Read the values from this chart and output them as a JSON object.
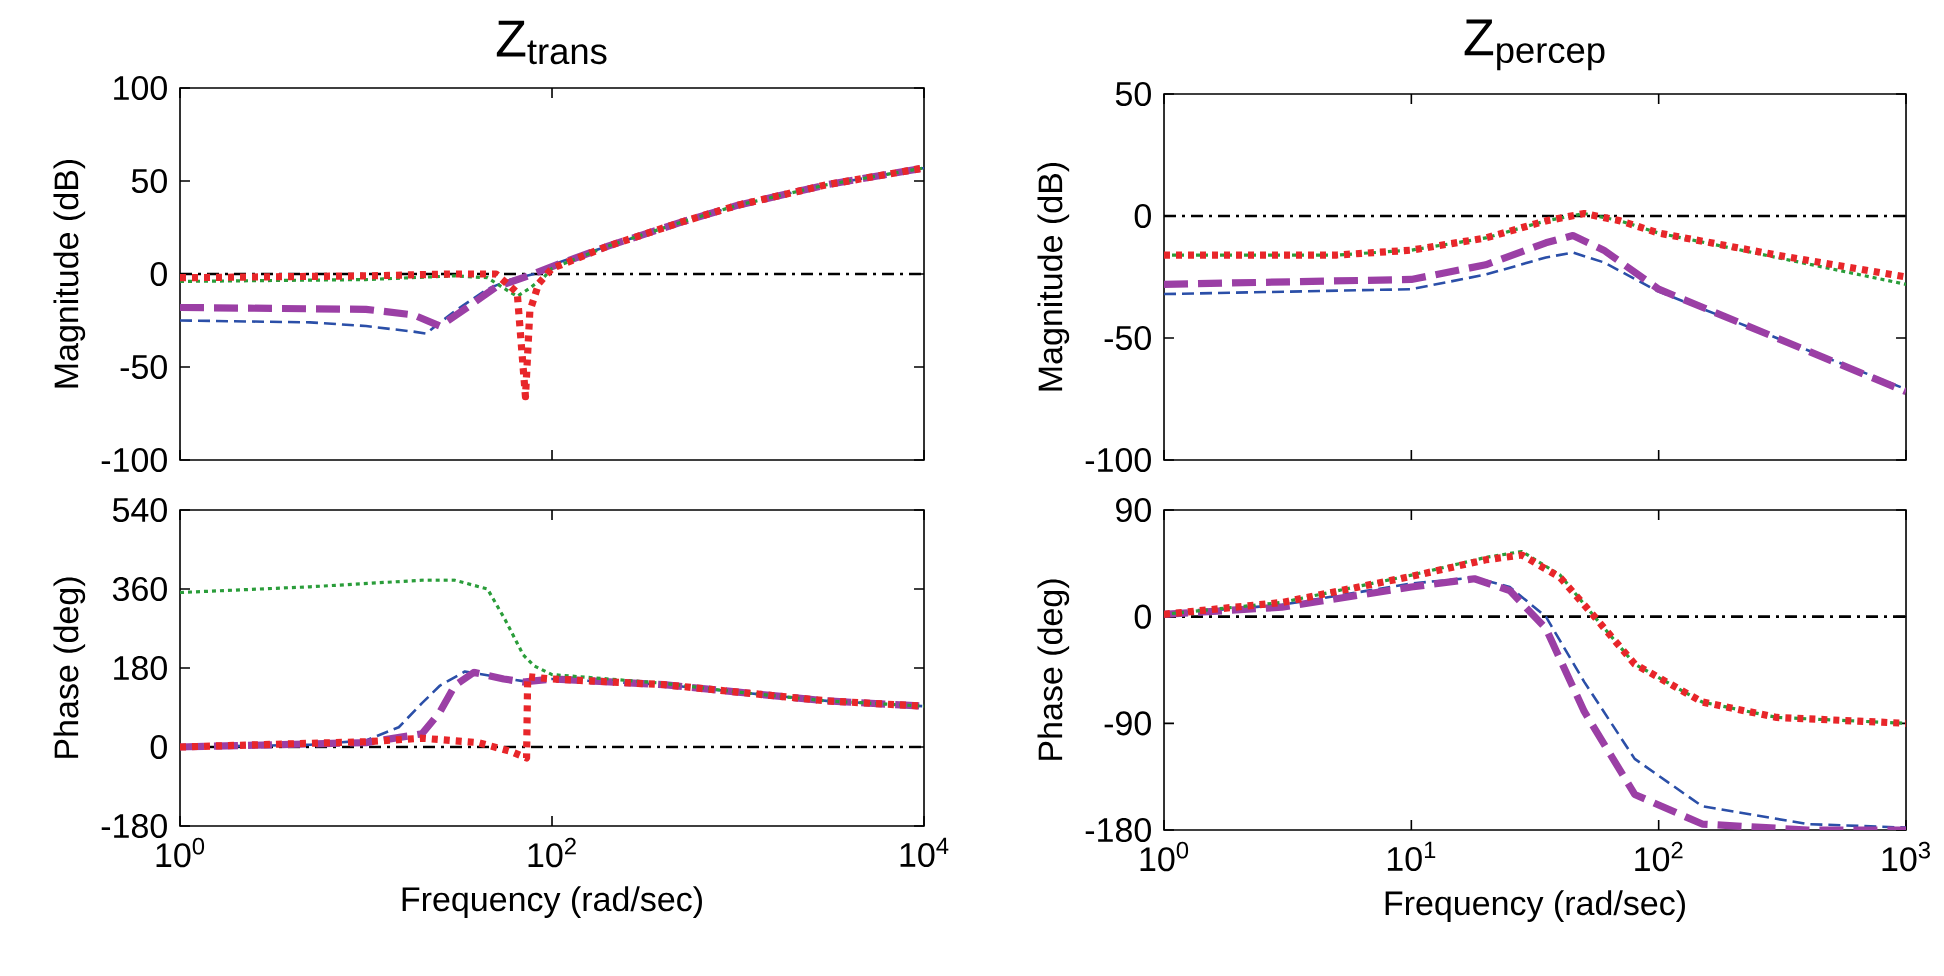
{
  "chart_data": [
    {
      "type": "line",
      "title": "Z$_{trans}$",
      "ylabel": "Magnitude (dB)",
      "log": "x",
      "tick_labels": "y",
      "xlim": [
        1,
        10000
      ],
      "ylim": [
        -100,
        100
      ],
      "xticks": [
        {
          "value": 1,
          "label": null
        },
        {
          "value": 100,
          "label": null
        },
        {
          "value": 10000,
          "label": null
        }
      ],
      "yticks": [
        -100,
        -50,
        0,
        50,
        100
      ],
      "ref_lines": [
        {
          "axis": "y",
          "value": 0,
          "color": "#000000"
        }
      ],
      "series": [
        {
          "color": "#2b4fa8",
          "line_style": "dashed",
          "x": [
            1,
            5,
            10,
            18,
            21,
            30,
            45,
            60,
            80,
            100,
            200,
            500,
            1000,
            3000,
            10000
          ],
          "values": [
            -25,
            -26,
            -28,
            -31,
            -32,
            -20,
            -8,
            -3,
            0,
            5,
            15,
            28,
            37,
            48,
            57
          ]
        },
        {
          "color": "#9b3fa5",
          "line_style": "dashed",
          "x": [
            1,
            10,
            18,
            25,
            35,
            50,
            70,
            100,
            200,
            500,
            1000,
            3000,
            10000
          ],
          "values": [
            -18,
            -19,
            -22,
            -28,
            -18,
            -7,
            -2,
            4,
            15,
            28,
            37,
            48,
            57
          ]
        },
        {
          "color": "#2a9d3a",
          "line_style": "dotted",
          "x": [
            1,
            10,
            30,
            45,
            60,
            65,
            75,
            90,
            100,
            200,
            500,
            1000,
            3000,
            10000
          ],
          "values": [
            -4,
            -3,
            -1,
            -2,
            -10,
            -12,
            -8,
            -2,
            3,
            15,
            28,
            37,
            48,
            57
          ]
        },
        {
          "color": "#e8262a",
          "line_style": "dotted",
          "x": [
            1,
            10,
            30,
            50,
            65,
            72,
            76,
            85,
            100,
            200,
            500,
            1000,
            3000,
            10000
          ],
          "values": [
            -2,
            -1,
            0,
            0,
            -10,
            -66,
            -20,
            -5,
            3,
            15,
            28,
            37,
            48,
            57
          ]
        }
      ]
    },
    {
      "type": "line",
      "title": "Z$_{percep}$",
      "ylabel": "Magnitude (dB)",
      "log": "x",
      "tick_labels": "y",
      "xlim": [
        1,
        1000
      ],
      "ylim": [
        -100,
        50
      ],
      "xticks": [
        {
          "value": 1,
          "label": null
        },
        {
          "value": 10,
          "label": null
        },
        {
          "value": 100,
          "label": null
        },
        {
          "value": 1000,
          "label": null
        }
      ],
      "yticks": [
        -100,
        -50,
        0,
        50
      ],
      "ref_lines": [
        {
          "axis": "y",
          "value": 0,
          "color": "#000000"
        }
      ],
      "series": [
        {
          "color": "#2b4fa8",
          "line_style": "dashed",
          "x": [
            1,
            10,
            20,
            35,
            45,
            60,
            100,
            300,
            1000
          ],
          "values": [
            -32,
            -30,
            -24,
            -17,
            -15,
            -19,
            -31,
            -50,
            -71
          ]
        },
        {
          "color": "#9b3fa5",
          "line_style": "dashed",
          "x": [
            1,
            10,
            20,
            35,
            45,
            60,
            100,
            300,
            1000
          ],
          "values": [
            -28,
            -26,
            -20,
            -11,
            -8,
            -14,
            -30,
            -50,
            -72
          ]
        },
        {
          "color": "#2a9d3a",
          "line_style": "dotted",
          "x": [
            1,
            5,
            10,
            20,
            35,
            50,
            70,
            100,
            300,
            1000
          ],
          "values": [
            -16,
            -16,
            -14,
            -9,
            -2,
            1,
            -2,
            -7,
            -17,
            -28
          ]
        },
        {
          "color": "#e8262a",
          "line_style": "dotted",
          "x": [
            1,
            5,
            10,
            20,
            35,
            50,
            70,
            100,
            300,
            1000
          ],
          "values": [
            -16,
            -16,
            -14,
            -9,
            -2,
            1,
            -2,
            -7,
            -16,
            -25
          ]
        }
      ]
    },
    {
      "type": "line",
      "xlabel": "Frequency  (rad/sec)",
      "ylabel": "Phase (deg)",
      "log": "x",
      "xlim": [
        1,
        10000
      ],
      "ylim": [
        -180,
        540
      ],
      "xticks": [
        {
          "value": 1,
          "label": "10$^{0}$"
        },
        {
          "value": 100,
          "label": "10$^{2}$"
        },
        {
          "value": 10000,
          "label": "10$^{4}$"
        }
      ],
      "yticks": [
        -180,
        0,
        180,
        360,
        540
      ],
      "ref_lines": [
        {
          "axis": "y",
          "value": 0,
          "color": "#000000"
        }
      ],
      "series": [
        {
          "color": "#2b4fa8",
          "line_style": "dashed",
          "x": [
            1,
            5,
            10,
            15,
            20,
            25,
            34,
            50,
            70,
            100,
            400,
            1000,
            3000,
            10000
          ],
          "values": [
            0,
            5,
            15,
            45,
            100,
            140,
            172,
            160,
            150,
            155,
            142,
            125,
            105,
            93
          ]
        },
        {
          "color": "#9b3fa5",
          "line_style": "dashed",
          "x": [
            1,
            10,
            20,
            25,
            30,
            38,
            55,
            70,
            100,
            400,
            1000,
            3000,
            10000
          ],
          "values": [
            0,
            10,
            30,
            80,
            140,
            170,
            155,
            148,
            155,
            142,
            125,
            105,
            93
          ]
        },
        {
          "color": "#2a9d3a",
          "line_style": "dotted",
          "x": [
            1,
            5,
            20,
            30,
            45,
            56,
            70,
            80,
            100,
            400,
            1000,
            3000,
            10000
          ],
          "values": [
            352,
            365,
            380,
            380,
            360,
            290,
            210,
            185,
            165,
            145,
            125,
            105,
            93
          ]
        },
        {
          "color": "#e8262a",
          "line_style": "dotted",
          "x": [
            1,
            10,
            20,
            40,
            60,
            73,
            74,
            100,
            400,
            1000,
            3000,
            10000
          ],
          "values": [
            0,
            12,
            20,
            10,
            -10,
            -25,
            160,
            155,
            142,
            125,
            105,
            93
          ]
        }
      ]
    },
    {
      "type": "line",
      "xlabel": "Frequency  (rad/sec)",
      "ylabel": "Phase (deg)",
      "log": "x",
      "xlim": [
        1,
        1000
      ],
      "ylim": [
        -180,
        90
      ],
      "xticks": [
        {
          "value": 1,
          "label": "10$^{0}$"
        },
        {
          "value": 10,
          "label": "10$^{1}$"
        },
        {
          "value": 100,
          "label": "10$^{2}$"
        },
        {
          "value": 1000,
          "label": "10$^{3}$"
        }
      ],
      "yticks": [
        -180,
        -90,
        0,
        90
      ],
      "ref_lines": [
        {
          "axis": "y",
          "value": 0,
          "color": "#000000"
        }
      ],
      "series": [
        {
          "color": "#2b4fa8",
          "line_style": "dashed",
          "x": [
            1,
            3,
            10,
            18,
            25,
            35,
            50,
            80,
            150,
            400,
            1000
          ],
          "values": [
            2,
            10,
            28,
            33,
            25,
            0,
            -55,
            -120,
            -160,
            -175,
            -178
          ]
        },
        {
          "color": "#9b3fa5",
          "line_style": "dashed",
          "x": [
            1,
            3,
            10,
            18,
            25,
            35,
            50,
            80,
            150,
            400,
            1000
          ],
          "values": [
            2,
            8,
            25,
            32,
            22,
            -10,
            -80,
            -150,
            -175,
            -180,
            -180
          ]
        },
        {
          "color": "#2a9d3a",
          "line_style": "dotted",
          "x": [
            1,
            3,
            10,
            20,
            28,
            40,
            55,
            80,
            150,
            300,
            1000
          ],
          "values": [
            2,
            12,
            35,
            50,
            55,
            35,
            0,
            -40,
            -72,
            -85,
            -90
          ]
        },
        {
          "color": "#e8262a",
          "line_style": "dotted",
          "x": [
            1,
            3,
            10,
            20,
            28,
            40,
            55,
            80,
            150,
            300,
            1000
          ],
          "values": [
            2,
            12,
            34,
            48,
            52,
            33,
            0,
            -40,
            -72,
            -85,
            -90
          ]
        }
      ]
    }
  ]
}
